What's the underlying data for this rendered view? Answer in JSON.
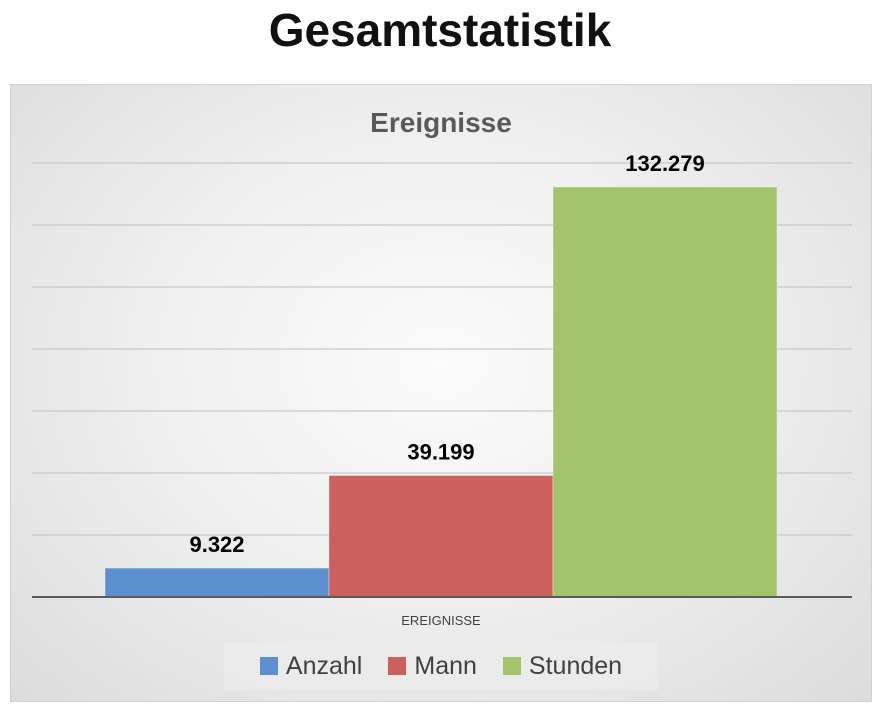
{
  "page": {
    "title": "Gesamtstatistik"
  },
  "chart_data": {
    "type": "bar",
    "title": "Ereignisse",
    "categories": [
      "EREIGNISSE"
    ],
    "xlabel": "",
    "ylabel": "",
    "ylim": [
      0,
      140000
    ],
    "grid": true,
    "legend_position": "bottom",
    "series": [
      {
        "name": "Anzahl",
        "values": [
          9322
        ],
        "label": "9.322",
        "color": "#5b8fcf"
      },
      {
        "name": "Mann",
        "values": [
          39199
        ],
        "label": "39.199",
        "color": "#cd5f5d"
      },
      {
        "name": "Stunden",
        "values": [
          132279
        ],
        "label": "132.279",
        "color": "#a3c46a"
      }
    ]
  }
}
